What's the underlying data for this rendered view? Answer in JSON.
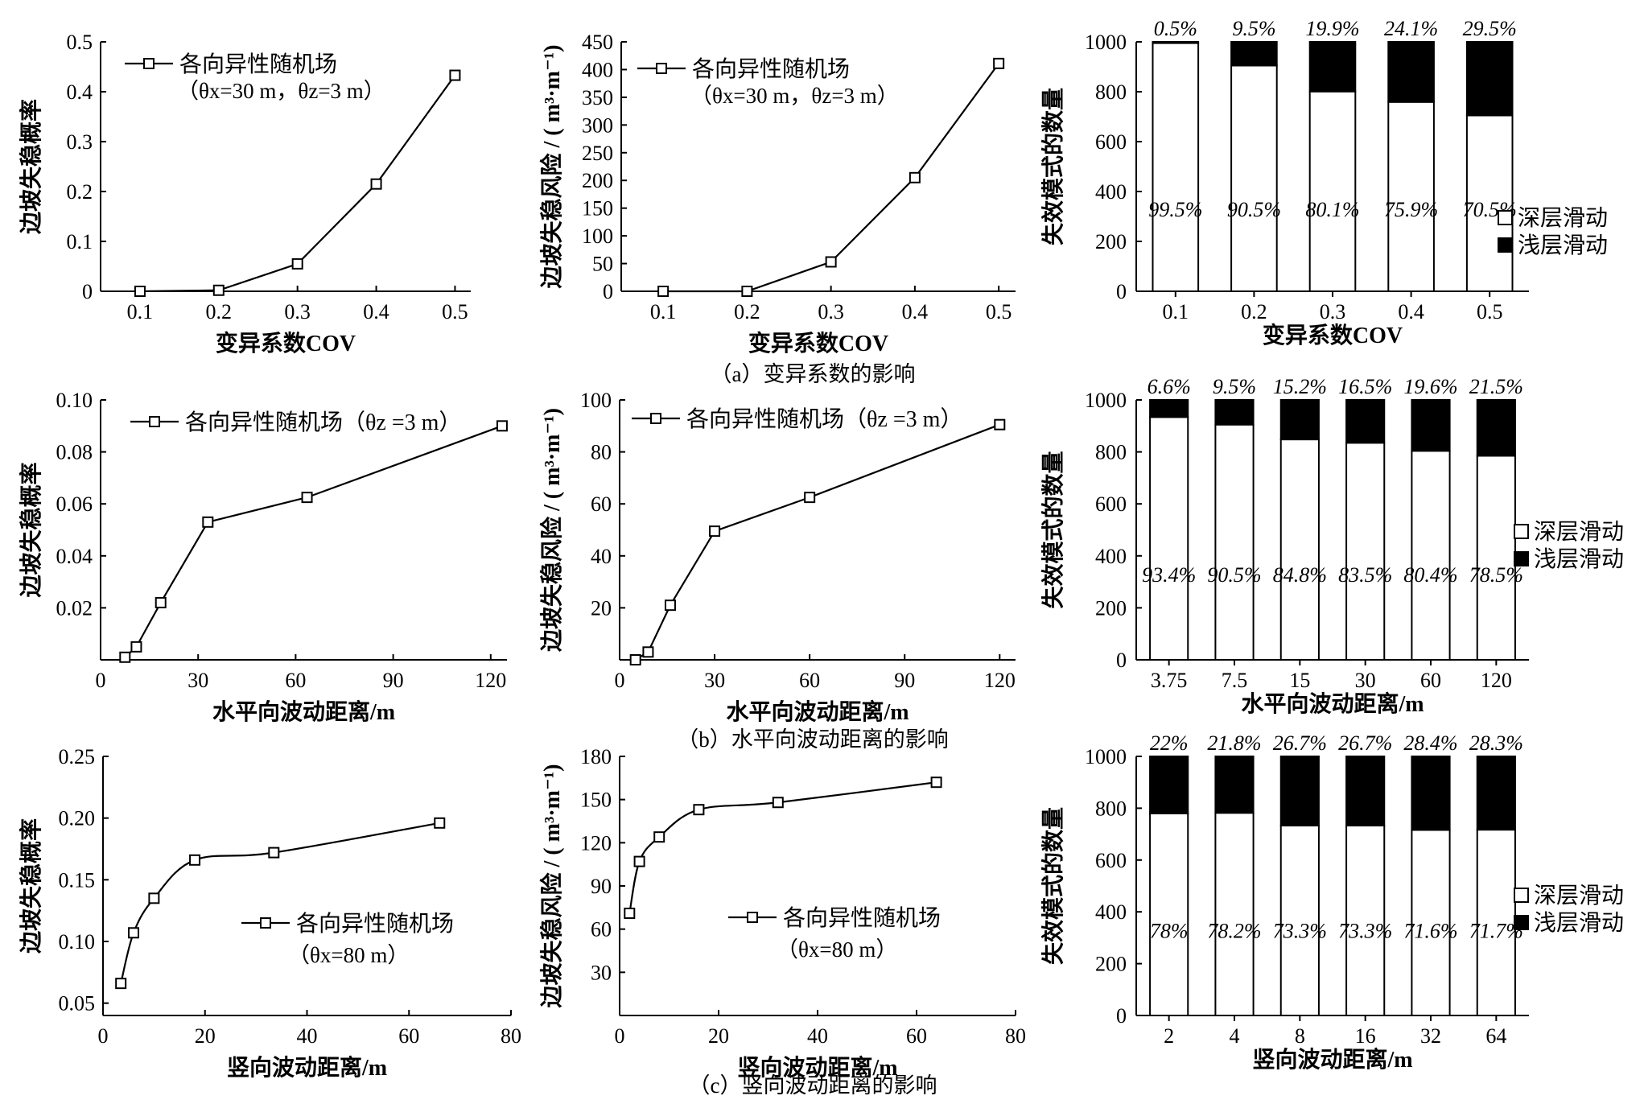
{
  "captions": {
    "a": "（a）变异系数的影响",
    "b": "（b）水平向波动距离的影响",
    "c": "（c）竖向波动距离的影响"
  },
  "chart_data": [
    {
      "id": "a1",
      "type": "line",
      "xlabel": "变异系数COV",
      "ylabel": "边坡失稳概率",
      "xlim": [
        0.05,
        0.52
      ],
      "ylim": [
        0,
        0.5
      ],
      "xticks": [
        0.1,
        0.2,
        0.3,
        0.4,
        0.5
      ],
      "xtick_labels": [
        "0.1",
        "0.2",
        "0.3",
        "0.4",
        "0.5"
      ],
      "yticks": [
        0,
        0.1,
        0.2,
        0.3,
        0.4,
        0.5
      ],
      "ytick_labels": [
        "0",
        "0.1",
        "0.2",
        "0.3",
        "0.4",
        "0.5"
      ],
      "legend": [
        "各向异性随机场",
        "（θx=30 m，θz=3 m）"
      ],
      "smooth": false,
      "series": [
        {
          "name": "各向异性随机场",
          "x": [
            0.1,
            0.2,
            0.3,
            0.4,
            0.5
          ],
          "y": [
            0,
            0.002,
            0.055,
            0.215,
            0.433
          ]
        }
      ]
    },
    {
      "id": "a2",
      "type": "line",
      "xlabel": "变异系数COV",
      "ylabel": "边坡失稳风险 / ( m³·m⁻¹)",
      "xlim": [
        0.05,
        0.52
      ],
      "ylim": [
        0,
        450
      ],
      "xticks": [
        0.1,
        0.2,
        0.3,
        0.4,
        0.5
      ],
      "xtick_labels": [
        "0.1",
        "0.2",
        "0.3",
        "0.4",
        "0.5"
      ],
      "yticks": [
        0,
        50,
        100,
        150,
        200,
        250,
        300,
        350,
        400,
        450
      ],
      "ytick_labels": [
        "0",
        "50",
        "100",
        "150",
        "200",
        "250",
        "300",
        "350",
        "400",
        "450"
      ],
      "legend": [
        "各向异性随机场",
        "（θx=30 m，θz=3 m）"
      ],
      "smooth": false,
      "series": [
        {
          "name": "各向异性随机场",
          "x": [
            0.1,
            0.2,
            0.3,
            0.4,
            0.5
          ],
          "y": [
            0,
            0,
            53,
            205,
            411
          ]
        }
      ]
    },
    {
      "id": "a3",
      "type": "bar",
      "xlabel": "变异系数COV",
      "ylabel": "失效模式的数量",
      "categories": [
        "0.1",
        "0.2",
        "0.3",
        "0.4",
        "0.5"
      ],
      "ylim": [
        0,
        1000
      ],
      "yticks": [
        0,
        200,
        400,
        600,
        800,
        1000
      ],
      "ytick_labels": [
        "0",
        "200",
        "400",
        "600",
        "800",
        "1000"
      ],
      "series": [
        {
          "name": "深层滑动",
          "values": [
            995,
            905,
            801,
            759,
            705
          ],
          "labels": [
            "99.5%",
            "90.5%",
            "80.1%",
            "75.9%",
            "70.5%"
          ]
        },
        {
          "name": "浅层滑动",
          "values": [
            5,
            95,
            199,
            241,
            295
          ],
          "labels": [
            "0.5%",
            "9.5%",
            "19.9%",
            "24.1%",
            "29.5%"
          ]
        }
      ],
      "legend": [
        "深层滑动",
        "浅层滑动"
      ]
    },
    {
      "id": "b1",
      "type": "line",
      "xlabel": "水平向波动距离/m",
      "ylabel": "边坡失稳概率",
      "xlim": [
        0,
        125
      ],
      "ylim": [
        0,
        0.1
      ],
      "xticks": [
        0,
        30,
        60,
        90,
        120
      ],
      "xtick_labels": [
        "0",
        "30",
        "60",
        "90",
        "120"
      ],
      "yticks": [
        0.02,
        0.04,
        0.06,
        0.08,
        0.1
      ],
      "ytick_labels": [
        "0.02",
        "0.04",
        "0.06",
        "0.08",
        "0.10"
      ],
      "legend": [
        "各向异性随机场（θz =3 m）"
      ],
      "smooth": false,
      "series": [
        {
          "name": "各向异性随机场",
          "x": [
            7.5,
            11,
            18.5,
            33,
            63.5,
            123.5
          ],
          "y": [
            0.001,
            0.005,
            0.022,
            0.053,
            0.0625,
            0.09
          ]
        }
      ]
    },
    {
      "id": "b2",
      "type": "line",
      "xlabel": "水平向波动距离/m",
      "ylabel": "边坡失稳风险 / ( m³·m⁻¹)",
      "xlim": [
        0,
        125
      ],
      "ylim": [
        0,
        100
      ],
      "xticks": [
        0,
        30,
        60,
        90,
        120
      ],
      "xtick_labels": [
        "0",
        "30",
        "60",
        "90",
        "120"
      ],
      "yticks": [
        20,
        40,
        60,
        80,
        100
      ],
      "ytick_labels": [
        "20",
        "40",
        "60",
        "80",
        "100"
      ],
      "legend": [
        "各向异性随机场（θz =3 m）"
      ],
      "smooth": false,
      "series": [
        {
          "name": "各向异性随机场",
          "x": [
            5,
            9,
            16,
            30,
            60,
            120
          ],
          "y": [
            0,
            3,
            21,
            49.5,
            62.5,
            90.5
          ]
        }
      ]
    },
    {
      "id": "b3",
      "type": "bar",
      "xlabel": "水平向波动距离/m",
      "ylabel": "失效模式的数量",
      "categories": [
        "3.75",
        "7.5",
        "15",
        "30",
        "60",
        "120"
      ],
      "ylim": [
        0,
        1000
      ],
      "yticks": [
        0,
        200,
        400,
        600,
        800,
        1000
      ],
      "ytick_labels": [
        "0",
        "200",
        "400",
        "600",
        "800",
        "1000"
      ],
      "series": [
        {
          "name": "深层滑动",
          "values": [
            934,
            905,
            848,
            835,
            804,
            785
          ],
          "labels": [
            "93.4%",
            "90.5%",
            "84.8%",
            "83.5%",
            "80.4%",
            "78.5%"
          ]
        },
        {
          "name": "浅层滑动",
          "values": [
            66,
            95,
            152,
            165,
            196,
            215
          ],
          "labels": [
            "6.6%",
            "9.5%",
            "15.2%",
            "16.5%",
            "19.6%",
            "21.5%"
          ]
        }
      ],
      "legend": [
        "深层滑动",
        "浅层滑动"
      ]
    },
    {
      "id": "c1",
      "type": "line",
      "xlabel": "竖向波动距离/m",
      "ylabel": "边坡失稳概率",
      "xlim": [
        0,
        80
      ],
      "ylim": [
        0.04,
        0.25
      ],
      "xticks": [
        0,
        20,
        40,
        60,
        80
      ],
      "xtick_labels": [
        "0",
        "20",
        "40",
        "60",
        "80"
      ],
      "yticks": [
        0.05,
        0.1,
        0.15,
        0.2,
        0.25
      ],
      "ytick_labels": [
        "0.05",
        "0.10",
        "0.15",
        "0.20",
        "0.25"
      ],
      "legend": [
        "各向异性随机场",
        "（θx=80 m）"
      ],
      "smooth": true,
      "series": [
        {
          "name": "各向异性随机场",
          "x": [
            3.5,
            6,
            10,
            18,
            33.5,
            66
          ],
          "y": [
            0.066,
            0.107,
            0.135,
            0.166,
            0.172,
            0.196
          ]
        }
      ]
    },
    {
      "id": "c2",
      "type": "line",
      "xlabel": "竖向波动距离/m",
      "ylabel": "边坡失稳风险 / ( m³·m⁻¹)",
      "xlim": [
        0,
        80
      ],
      "ylim": [
        0,
        180
      ],
      "xticks": [
        0,
        20,
        40,
        60,
        80
      ],
      "xtick_labels": [
        "0",
        "20",
        "40",
        "60",
        "80"
      ],
      "yticks": [
        30,
        60,
        90,
        120,
        150,
        180
      ],
      "ytick_labels": [
        "30",
        "60",
        "90",
        "120",
        "150",
        "180"
      ],
      "legend": [
        "各向异性随机场",
        "（θx=80 m）"
      ],
      "smooth": true,
      "series": [
        {
          "name": "各向异性随机场",
          "x": [
            2,
            4,
            8,
            16,
            32,
            64
          ],
          "y": [
            71,
            107,
            124,
            143,
            148,
            162
          ]
        }
      ]
    },
    {
      "id": "c3",
      "type": "bar",
      "xlabel": "竖向波动距离/m",
      "ylabel": "失效模式的数量",
      "categories": [
        "2",
        "4",
        "8",
        "16",
        "32",
        "64"
      ],
      "ylim": [
        0,
        1000
      ],
      "yticks": [
        0,
        200,
        400,
        600,
        800,
        1000
      ],
      "ytick_labels": [
        "0",
        "200",
        "400",
        "600",
        "800",
        "1000"
      ],
      "series": [
        {
          "name": "深层滑动",
          "values": [
            780,
            782,
            733,
            733,
            716,
            717
          ],
          "labels": [
            "78%",
            "78.2%",
            "73.3%",
            "73.3%",
            "71.6%",
            "71.7%"
          ]
        },
        {
          "name": "浅层滑动",
          "values": [
            220,
            218,
            267,
            267,
            284,
            283
          ],
          "labels": [
            "22%",
            "21.8%",
            "26.7%",
            "26.7%",
            "28.4%",
            "28.3%"
          ]
        }
      ],
      "legend": [
        "深层滑动",
        "浅层滑动"
      ]
    }
  ]
}
